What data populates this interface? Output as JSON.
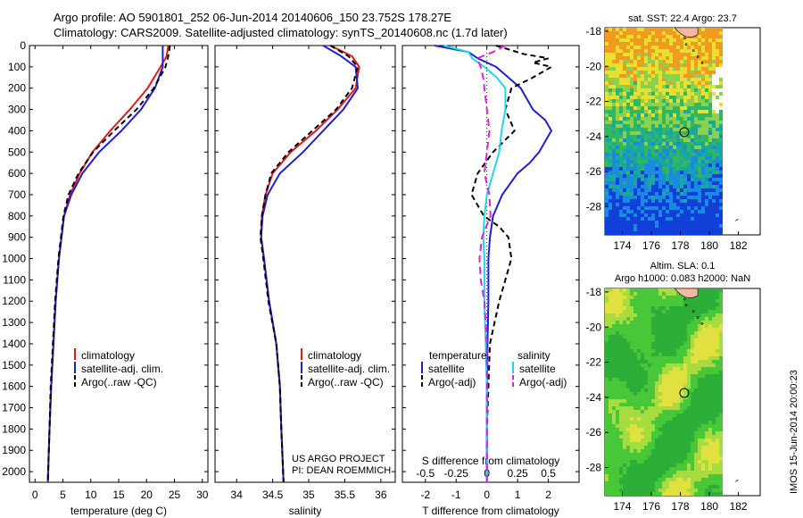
{
  "header": {
    "line1": "Argo profile: AO 5901801_252 06-Jun-2014 20140606_150 23.752S 178.27E",
    "line2": "Climatology: CARS2009. Satellite-adjusted climatology: synTS_20140608.nc (1.7d later)"
  },
  "footer": {
    "project": "US ARGO PROJECT",
    "pi": "PI: DEAN ROEMMICH",
    "stamp": "IMOS 15-Jun-2014 20:00:23"
  },
  "colors": {
    "clim": "#e41a1c",
    "sat": "#1f1fd0",
    "argo": "#000000",
    "sal_sat": "#22d8e0",
    "sal_argo": "#e020e0"
  },
  "chart_data": [
    {
      "type": "line",
      "xlabel": "temperature (deg C)",
      "ylabel": "",
      "xlim": [
        -1,
        31
      ],
      "ylim": [
        2050,
        0
      ],
      "xticks": [
        0,
        5,
        10,
        15,
        20,
        25,
        30
      ],
      "yticks": [
        0,
        100,
        200,
        300,
        400,
        500,
        600,
        700,
        800,
        900,
        1000,
        1100,
        1200,
        1300,
        1400,
        1500,
        1600,
        1700,
        1800,
        1900,
        2000
      ],
      "legend": [
        "climatology",
        "satellite-adj. clim.",
        "Argo(..raw -QC)"
      ],
      "series": [
        {
          "name": "climatology",
          "color": "#e41a1c",
          "dash": "",
          "y": [
            0,
            50,
            100,
            200,
            300,
            400,
            500,
            600,
            700,
            800,
            1000,
            1200,
            1400,
            1600,
            1800,
            2050
          ],
          "values": [
            23.9,
            23.6,
            22.5,
            20.2,
            17.0,
            13.5,
            10.3,
            8.0,
            6.3,
            5.2,
            4.3,
            3.7,
            3.3,
            2.9,
            2.6,
            2.3
          ]
        },
        {
          "name": "satellite-adj. clim.",
          "color": "#1f1fd0",
          "dash": "",
          "y": [
            0,
            60,
            100,
            200,
            300,
            400,
            500,
            600,
            700,
            800,
            1000,
            1200,
            1400,
            1600,
            1800,
            2050
          ],
          "values": [
            22.9,
            22.9,
            22.9,
            21.5,
            19.0,
            15.5,
            11.5,
            8.5,
            6.5,
            5.2,
            4.3,
            3.7,
            3.3,
            2.9,
            2.6,
            2.3
          ]
        },
        {
          "name": "Argo(..raw -QC)",
          "color": "#000000",
          "dash": "6 4",
          "y": [
            0,
            50,
            100,
            200,
            300,
            400,
            500,
            600,
            700,
            800,
            1000,
            1200,
            1400,
            1600,
            1800,
            2050
          ],
          "values": [
            24.2,
            23.9,
            23.4,
            21.3,
            18.2,
            14.2,
            10.4,
            7.8,
            6.0,
            5.1,
            4.2,
            3.6,
            3.2,
            2.8,
            2.6,
            2.3
          ]
        }
      ]
    },
    {
      "type": "line",
      "xlabel": "salinity",
      "ylabel": "",
      "xlim": [
        33.7,
        36.2
      ],
      "ylim": [
        2050,
        0
      ],
      "xticks": [
        34,
        34.5,
        35,
        35.5,
        36
      ],
      "legend": [
        "climatology",
        "satellite-adj. clim.",
        "Argo(..raw -QC)"
      ],
      "series": [
        {
          "name": "climatology",
          "color": "#e41a1c",
          "dash": "",
          "y": [
            0,
            50,
            100,
            200,
            300,
            400,
            500,
            600,
            700,
            800,
            900,
            1000,
            1200,
            1400,
            1600,
            1800,
            2050
          ],
          "values": [
            35.3,
            35.6,
            35.7,
            35.65,
            35.4,
            35.1,
            34.75,
            34.5,
            34.4,
            34.35,
            34.34,
            34.38,
            34.45,
            34.55,
            34.6,
            34.62,
            34.65
          ]
        },
        {
          "name": "satellite-adj. clim.",
          "color": "#1f1fd0",
          "dash": "",
          "y": [
            0,
            50,
            100,
            200,
            300,
            400,
            500,
            600,
            700,
            800,
            900,
            1000,
            1200,
            1400,
            1600,
            1800,
            2050
          ],
          "values": [
            35.2,
            35.45,
            35.65,
            35.68,
            35.48,
            35.2,
            34.92,
            34.6,
            34.43,
            34.36,
            34.34,
            34.38,
            34.45,
            34.55,
            34.6,
            34.62,
            34.65
          ]
        },
        {
          "name": "Argo(..raw -QC)",
          "color": "#000000",
          "dash": "6 4",
          "y": [
            0,
            50,
            100,
            200,
            300,
            400,
            500,
            600,
            700,
            800,
            900,
            1000,
            1200,
            1400,
            1600,
            1800,
            2050
          ],
          "values": [
            35.3,
            35.55,
            35.68,
            35.6,
            35.38,
            35.05,
            34.72,
            34.48,
            34.4,
            34.35,
            34.33,
            34.37,
            34.44,
            34.55,
            34.6,
            34.62,
            34.65
          ]
        }
      ]
    },
    {
      "type": "line",
      "xlabel": "T difference from climatology",
      "xlabel2": "S difference from climatology",
      "ylabel": "",
      "xlim": [
        -2.75,
        3.0
      ],
      "xlim2": [
        -0.6875,
        0.75
      ],
      "ylim": [
        2050,
        0
      ],
      "xticks": [
        -2,
        -1,
        0,
        1,
        2
      ],
      "xticks2": [
        -0.5,
        -0.25,
        0,
        0.25,
        0.5
      ],
      "xticklabels2": [
        "-0.5",
        "-0.25",
        "0",
        "0.25",
        "0.5"
      ],
      "legend_titles": [
        "temperature",
        "salinity"
      ],
      "legend": [
        "satellite",
        "Argo(-adj)",
        "satellite",
        "Argo(-adj)"
      ],
      "series": [
        {
          "name": "satellite",
          "group": "temperature",
          "color": "#1f1fd0",
          "dash": "",
          "y": [
            0,
            30,
            60,
            100,
            150,
            200,
            250,
            300,
            350,
            400,
            450,
            500,
            550,
            600,
            700,
            800,
            900,
            1000,
            1200,
            1400,
            1600,
            1800,
            2050
          ],
          "values": [
            -1.7,
            -0.6,
            -0.3,
            0.3,
            0.7,
            1.1,
            1.3,
            1.5,
            1.9,
            2.1,
            1.9,
            1.7,
            1.4,
            1.0,
            0.5,
            0.2,
            0.1,
            0.05,
            0.05,
            0.02,
            0.0,
            0.0,
            0.0
          ]
        },
        {
          "name": "Argo(-adj)",
          "group": "temperature",
          "color": "#000000",
          "dash": "6 4",
          "y": [
            0,
            40,
            60,
            80,
            100,
            150,
            200,
            300,
            400,
            500,
            600,
            700,
            800,
            850,
            900,
            1000,
            1100,
            1200,
            1400,
            1600,
            1800,
            2050
          ],
          "values": [
            0.3,
            1.2,
            2.0,
            1.5,
            2.1,
            1.5,
            0.8,
            0.6,
            0.9,
            0.2,
            -0.3,
            -0.5,
            -0.1,
            0.4,
            0.7,
            0.8,
            0.6,
            0.4,
            0.1,
            0.05,
            0.0,
            0.0
          ]
        },
        {
          "name": "satellite",
          "group": "salinity",
          "color": "#22d8e0",
          "dash": "",
          "y": [
            0,
            30,
            60,
            100,
            150,
            200,
            300,
            400,
            500,
            600,
            700,
            800,
            900,
            1000,
            1200,
            1400,
            1600,
            1800,
            2050
          ],
          "values": [
            -0.35,
            -0.15,
            -0.12,
            -0.02,
            0.08,
            0.15,
            0.15,
            0.12,
            0.1,
            0.05,
            0.0,
            -0.02,
            -0.03,
            -0.02,
            -0.02,
            -0.01,
            0.0,
            0.0,
            0.0
          ]
        },
        {
          "name": "Argo(-adj)",
          "group": "salinity",
          "color": "#e020e0",
          "dash": "8 5",
          "y": [
            0,
            30,
            60,
            100,
            150,
            200,
            300,
            400,
            500,
            600,
            700,
            800,
            900,
            1000,
            1100,
            1200,
            1400,
            1600,
            1800,
            2050
          ],
          "values": [
            0.15,
            0.05,
            -0.08,
            -0.05,
            -0.03,
            -0.02,
            0.0,
            0.02,
            0.0,
            -0.02,
            0.02,
            0.03,
            -0.04,
            -0.06,
            -0.05,
            -0.02,
            0.0,
            0.0,
            0.0,
            0.0
          ]
        }
      ]
    },
    {
      "type": "heatmap",
      "title": "sat. SST: 22.4  Argo: 23.7",
      "xlim": [
        172.8,
        183.5
      ],
      "ylim": [
        -29.6,
        -17.8
      ],
      "xticks": [
        174,
        176,
        178,
        180,
        182
      ],
      "yticks": [
        -18,
        -20,
        -22,
        -24,
        -26,
        -28
      ],
      "marker": {
        "lon": 178.27,
        "lat": -23.75
      }
    },
    {
      "type": "heatmap",
      "title": "Altim. SLA: 0.1",
      "subtitle": "Argo h1000: 0.083 h2000: NaN",
      "xlim": [
        172.8,
        183.5
      ],
      "ylim": [
        -29.6,
        -17.8
      ],
      "xticks": [
        174,
        176,
        178,
        180,
        182
      ],
      "yticks": [
        -18,
        -20,
        -22,
        -24,
        -26,
        -28
      ],
      "marker": {
        "lon": 178.27,
        "lat": -23.75
      }
    }
  ]
}
